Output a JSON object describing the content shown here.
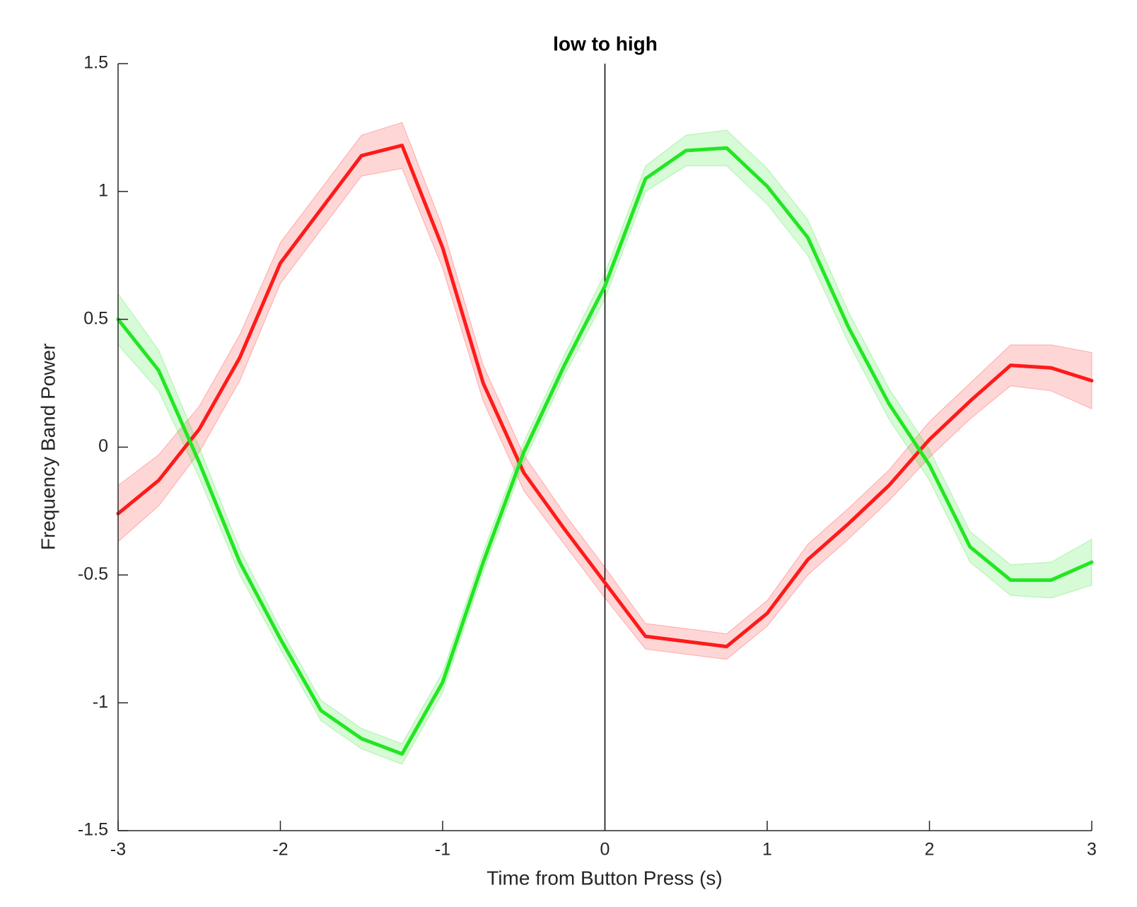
{
  "chart_data": {
    "type": "line",
    "title": "low to high",
    "x_label": "Time from Button Press (s)",
    "y_label": "Frequency Band Power",
    "x": [
      -3,
      -2.75,
      -2.5,
      -2.25,
      -2,
      -1.75,
      -1.5,
      -1.25,
      -1,
      -0.75,
      -0.5,
      -0.25,
      0,
      0.25,
      0.5,
      0.75,
      1,
      1.25,
      1.5,
      1.75,
      2,
      2.25,
      2.5,
      2.75,
      3
    ],
    "series": [
      {
        "color": "#ff1a1a",
        "values": [
          -0.26,
          -0.13,
          0.07,
          0.35,
          0.72,
          0.93,
          1.14,
          1.18,
          0.78,
          0.25,
          -0.1,
          -0.32,
          -0.53,
          -0.74,
          -0.76,
          -0.78,
          -0.65,
          -0.44,
          -0.3,
          -0.15,
          0.03,
          0.18,
          0.32,
          0.31,
          0.26
        ],
        "errors": [
          0.11,
          0.1,
          0.09,
          0.09,
          0.08,
          0.08,
          0.08,
          0.09,
          0.08,
          0.07,
          0.07,
          0.06,
          0.06,
          0.05,
          0.05,
          0.05,
          0.05,
          0.06,
          0.06,
          0.06,
          0.07,
          0.07,
          0.08,
          0.09,
          0.11
        ]
      },
      {
        "color": "#22e622",
        "values": [
          0.5,
          0.3,
          -0.06,
          -0.45,
          -0.75,
          -1.03,
          -1.14,
          -1.2,
          -0.92,
          -0.45,
          -0.02,
          0.32,
          0.63,
          1.05,
          1.16,
          1.17,
          1.02,
          0.82,
          0.47,
          0.17,
          -0.07,
          -0.39,
          -0.52,
          -0.52,
          -0.45
        ],
        "errors": [
          0.1,
          0.08,
          0.06,
          0.05,
          0.04,
          0.04,
          0.04,
          0.04,
          0.04,
          0.04,
          0.04,
          0.04,
          0.05,
          0.05,
          0.06,
          0.07,
          0.07,
          0.07,
          0.06,
          0.06,
          0.06,
          0.06,
          0.06,
          0.07,
          0.09
        ]
      }
    ],
    "vline": 0,
    "xlim": [
      -3,
      3
    ],
    "xticks": [
      -3,
      -2,
      -1,
      0,
      1,
      2,
      3
    ],
    "ylim": [
      -1.5,
      1.5
    ],
    "yticks": [
      -1.5,
      -1,
      -0.5,
      0,
      0.5,
      1,
      1.5
    ]
  }
}
